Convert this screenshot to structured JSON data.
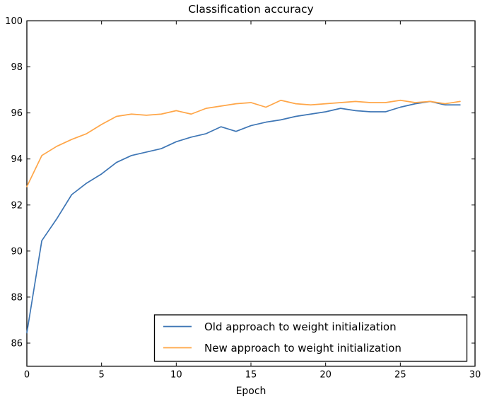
{
  "figure": {
    "background_color": "#ffffff",
    "axes_edge_color": "#000000"
  },
  "chart_data": {
    "type": "line",
    "title": "Classification accuracy",
    "xlabel": "Epoch",
    "ylabel": "",
    "xlim": [
      0,
      30
    ],
    "ylim": [
      85,
      100
    ],
    "x_ticks": [
      0,
      5,
      10,
      15,
      20,
      25,
      30
    ],
    "y_ticks": [
      86,
      88,
      90,
      92,
      94,
      96,
      98,
      100
    ],
    "grid": false,
    "legend_position": "lower right",
    "x": [
      0,
      1,
      2,
      3,
      4,
      5,
      6,
      7,
      8,
      9,
      10,
      11,
      12,
      13,
      14,
      15,
      16,
      17,
      18,
      19,
      20,
      21,
      22,
      23,
      24,
      25,
      26,
      27,
      28,
      29
    ],
    "series": [
      {
        "name": "Old approach to weight initialization",
        "color": "#3e76b5",
        "values": [
          86.45,
          90.45,
          91.4,
          92.45,
          92.95,
          93.35,
          93.85,
          94.15,
          94.3,
          94.45,
          94.75,
          94.95,
          95.1,
          95.4,
          95.2,
          95.45,
          95.6,
          95.7,
          95.85,
          95.95,
          96.05,
          96.2,
          96.1,
          96.05,
          96.05,
          96.25,
          96.4,
          96.5,
          96.35,
          96.35
        ]
      },
      {
        "name": "New approach to weight initialization",
        "color": "#ffa648",
        "values": [
          92.8,
          94.15,
          94.55,
          94.85,
          95.1,
          95.5,
          95.85,
          95.95,
          95.9,
          95.95,
          96.1,
          95.95,
          96.2,
          96.3,
          96.4,
          96.45,
          96.25,
          96.55,
          96.4,
          96.35,
          96.4,
          96.45,
          96.5,
          96.45,
          96.45,
          96.55,
          96.45,
          96.5,
          96.4,
          96.5
        ]
      }
    ]
  }
}
